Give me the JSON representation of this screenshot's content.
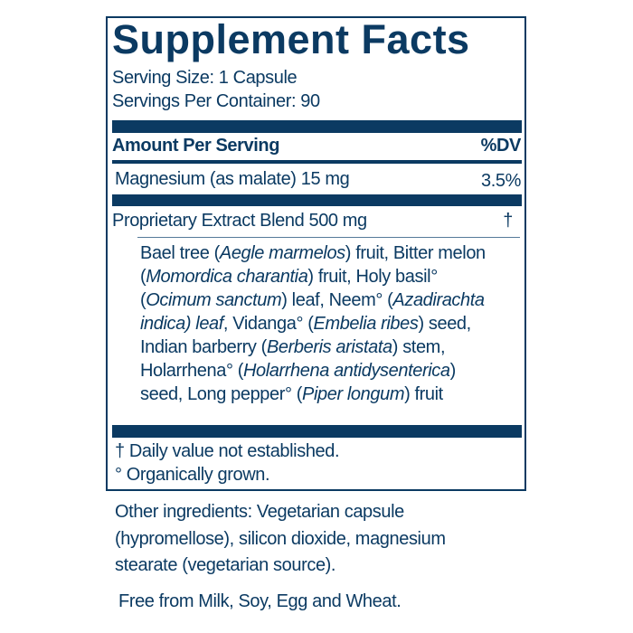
{
  "title": "Supplement Facts",
  "serving_size": "Serving Size: 1 Capsule",
  "servings_per_container": "Servings Per Container: 90",
  "header": {
    "amount": "Amount Per Serving",
    "dv": "%DV"
  },
  "nutrients": [
    {
      "name": "Magnesium (as malate) 15 mg",
      "dv": "3.5%"
    }
  ],
  "blend": {
    "name": "Proprietary Extract Blend 500 mg",
    "dv": "†",
    "ingredient_lines": [
      [
        {
          "t": "Bael tree (",
          "i": false
        },
        {
          "t": "Aegle marmelos",
          "i": true
        },
        {
          "t": ") fruit, Bitter melon",
          "i": false
        }
      ],
      [
        {
          "t": "(",
          "i": false
        },
        {
          "t": "Momordica charantia",
          "i": true
        },
        {
          "t": ") fruit, Holy basil°",
          "i": false
        }
      ],
      [
        {
          "t": "(",
          "i": false
        },
        {
          "t": "Ocimum sanctum",
          "i": true
        },
        {
          "t": ") leaf, Neem° (",
          "i": false
        },
        {
          "t": "Azadirachta",
          "i": true
        }
      ],
      [
        {
          "t": "indica) leaf",
          "i": true
        },
        {
          "t": ", Vidanga° (",
          "i": false
        },
        {
          "t": "Embelia ribes",
          "i": true
        },
        {
          "t": ") seed,",
          "i": false
        }
      ],
      [
        {
          "t": "Indian barberry (",
          "i": false
        },
        {
          "t": "Berberis aristata",
          "i": true
        },
        {
          "t": ") stem,",
          "i": false
        }
      ],
      [
        {
          "t": "Holarrhena°  (",
          "i": false
        },
        {
          "t": "Holarrhena antidysenterica",
          "i": true
        },
        {
          "t": ")",
          "i": false
        }
      ],
      [
        {
          "t": "seed, Long pepper° (",
          "i": false
        },
        {
          "t": "Piper longum",
          "i": true
        },
        {
          "t": ") fruit",
          "i": false
        }
      ]
    ]
  },
  "footnotes": [
    "† Daily value not established.",
    "° Organically grown."
  ],
  "other_ingredients": [
    "Other ingredients: Vegetarian capsule",
    "(hypromellose),  silicon dioxide, magnesium",
    "stearate (vegetarian source)."
  ],
  "free_from": "Free from Milk, Soy, Egg and Wheat.",
  "colors": {
    "ink": "#0b3a62"
  }
}
